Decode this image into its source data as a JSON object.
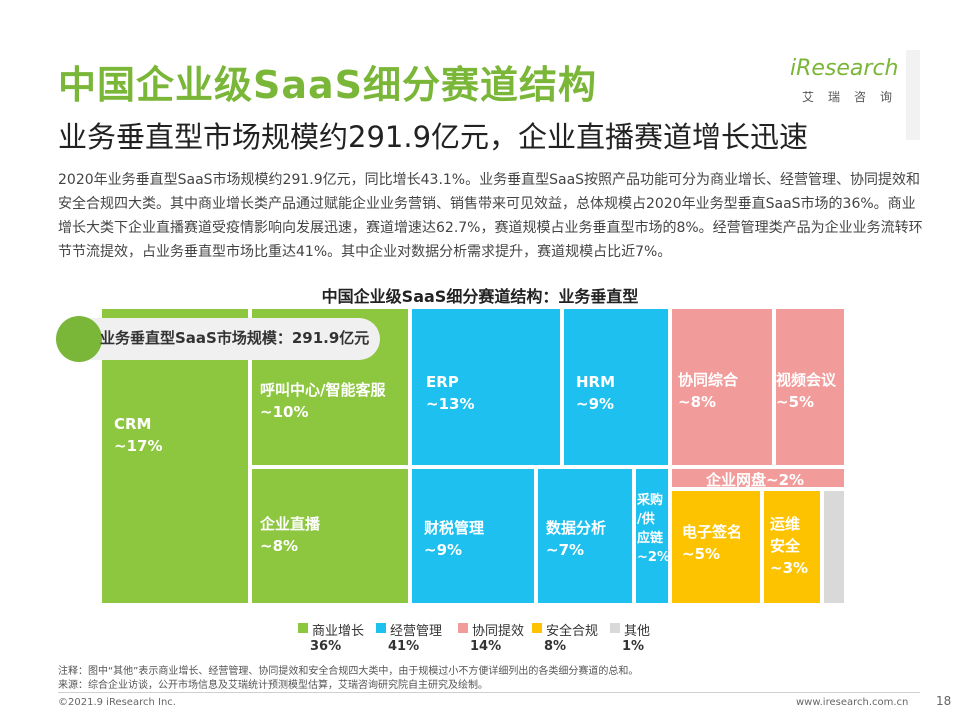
{
  "header": {
    "title": "中国企业级SaaS细分赛道结构",
    "subtitle": "业务垂直型市场规模约291.9亿元，企业直播赛道增长迅速"
  },
  "logo": {
    "word": "iResearch",
    "sub": "艾瑞咨询"
  },
  "description": "2020年业务垂直型SaaS市场规模约291.9亿元，同比增长43.1%。业务垂直型SaaS按照产品功能可分为商业增长、经营管理、协同提效和安全合规四大类。其中商业增长类产品通过赋能企业业务营销、销售带来可见效益，总体规模占2020年业务型垂直SaaS市场的36%。商业增长大类下企业直播赛道受疫情影响向发展迅速，赛道增速达62.7%，赛道规模占业务垂直型市场的8%。经营管理类产品为企业业务流转环节节流提效，占业务垂直型市场比重达41%。其中企业对数据分析需求提升，赛道规模占比近7%。",
  "badge": "业务垂直型SaaS市场规模：291.9亿元",
  "chart_data": {
    "type": "treemap",
    "title": "中国企业级SaaS细分赛道结构：业务垂直型",
    "colors": {
      "商业增长": "#8dc63f",
      "经营管理": "#1ec0ef",
      "协同提效": "#f29b9b",
      "安全合规": "#fdc300",
      "其他": "#d9d9d9"
    },
    "tiles": [
      {
        "name": "CRM",
        "value": "~17%",
        "category": "商业增长"
      },
      {
        "name": "呼叫中心/智能客服",
        "value": "~10%",
        "category": "商业增长"
      },
      {
        "name": "企业直播",
        "value": "~8%",
        "category": "商业增长"
      },
      {
        "name": "ERP",
        "value": "~13%",
        "category": "经营管理"
      },
      {
        "name": "HRM",
        "value": "~9%",
        "category": "经营管理"
      },
      {
        "name": "财税管理",
        "value": "~9%",
        "category": "经营管理"
      },
      {
        "name": "数据分析",
        "value": "~7%",
        "category": "经营管理"
      },
      {
        "name": "采购/供应链",
        "value": "~2%",
        "category": "经营管理"
      },
      {
        "name": "协同综合",
        "value": "~8%",
        "category": "协同提效"
      },
      {
        "name": "视频会议",
        "value": "~5%",
        "category": "协同提效"
      },
      {
        "name": "企业网盘",
        "value": "~2%",
        "category": "协同提效"
      },
      {
        "name": "电子签名",
        "value": "~5%",
        "category": "安全合规"
      },
      {
        "name": "运维安全",
        "value": "~3%",
        "category": "安全合规"
      },
      {
        "name": "其他",
        "value": "",
        "category": "其他"
      }
    ],
    "legend": [
      {
        "name": "商业增长",
        "value": "36%"
      },
      {
        "name": "经营管理",
        "value": "41%"
      },
      {
        "name": "协同提效",
        "value": "14%"
      },
      {
        "name": "安全合规",
        "value": "8%"
      },
      {
        "name": "其他",
        "value": "1%"
      }
    ]
  },
  "notes": {
    "note1": "注释：图中“其他”表示商业增长、经营管理、协同提效和安全合规四大类中，由于规模过小不方便详细列出的各类细分赛道的总和。",
    "note2": "来源：综合企业访谈，公开市场信息及艾瑞统计预测模型估算，艾瑞咨询研究院自主研究及绘制。"
  },
  "footer": {
    "copyright": "©2021.9 iResearch Inc.",
    "url": "www.iresearch.com.cn",
    "page": "18"
  }
}
